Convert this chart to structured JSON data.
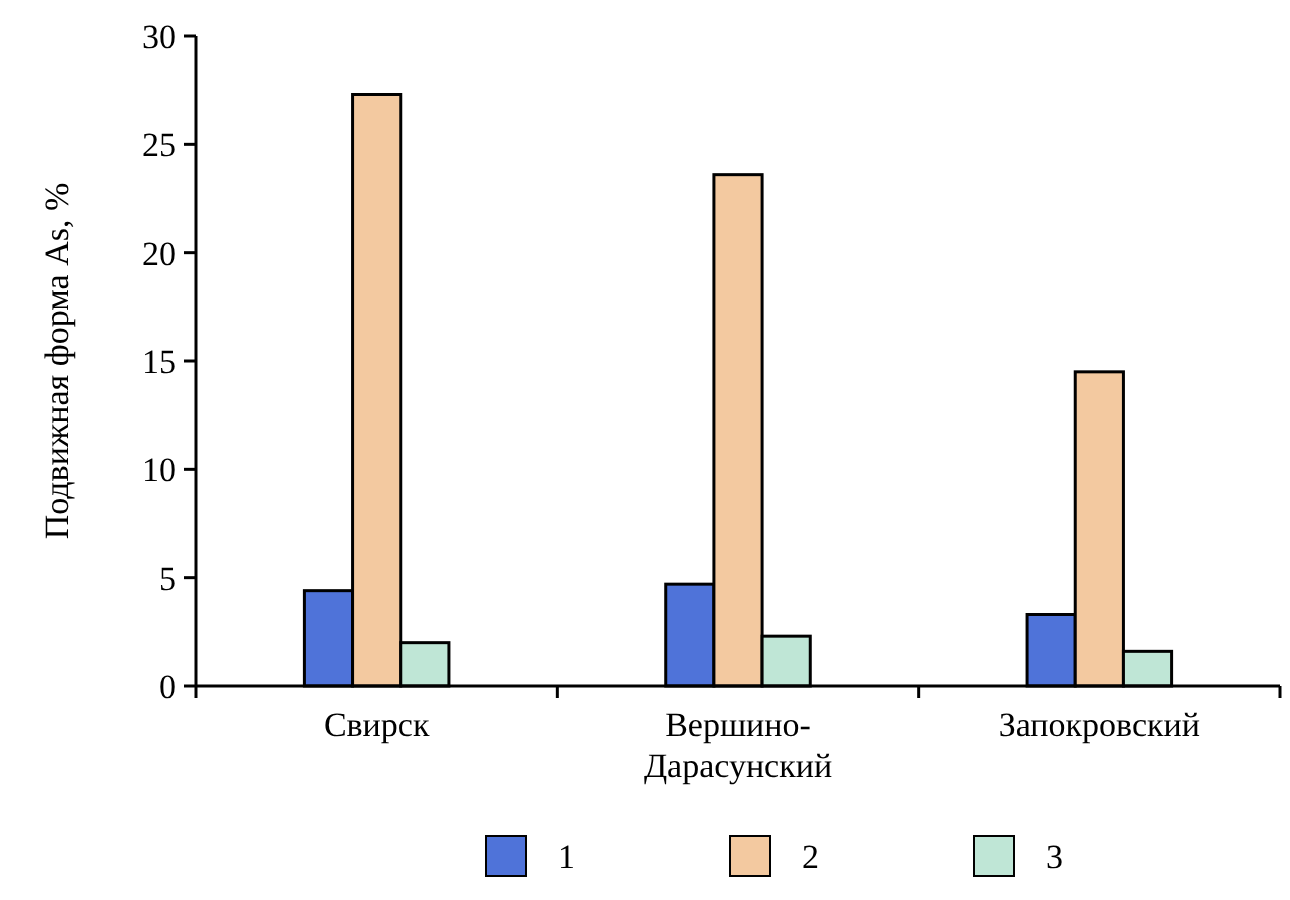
{
  "chart_data": {
    "type": "bar",
    "ylabel": "Подвижная форма As, %",
    "categories": [
      "Свирск",
      "Вершино-Дарасунский",
      "Запокровский"
    ],
    "series": [
      {
        "name": "1",
        "color": "#4f73d9",
        "values": [
          4.4,
          4.7,
          3.3
        ]
      },
      {
        "name": "2",
        "color": "#f3c9a0",
        "values": [
          27.3,
          23.6,
          14.5
        ]
      },
      {
        "name": "3",
        "color": "#bfe6d6",
        "values": [
          2.0,
          2.3,
          1.6
        ]
      }
    ],
    "ylim": [
      0,
      30
    ],
    "yticks": [
      0,
      5,
      10,
      15,
      20,
      25,
      30
    ],
    "legend": "bottom"
  }
}
